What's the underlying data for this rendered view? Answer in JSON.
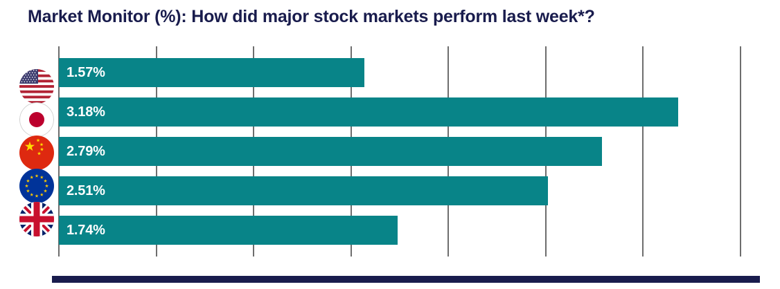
{
  "title": "Market Monitor (%): How did major stock markets perform last week*?",
  "colors": {
    "title_navy": "#191c4d",
    "bar_teal": "#088488",
    "gridline_gray": "#6d6d6d",
    "value_label_white": "#ffffff",
    "footer_navy": "#191c4d"
  },
  "chart_data": {
    "type": "bar",
    "orientation": "horizontal",
    "title": "Market Monitor (%): How did major stock markets perform last week*?",
    "categories": [
      "United States",
      "Japan",
      "China",
      "European Union",
      "United Kingdom"
    ],
    "icons": [
      "us-flag-icon",
      "japan-flag-icon",
      "china-flag-icon",
      "eu-flag-icon",
      "uk-flag-icon"
    ],
    "values": [
      1.57,
      3.18,
      2.79,
      2.51,
      1.74
    ],
    "value_labels": [
      "1.57%",
      "3.18%",
      "2.79%",
      "2.51%",
      "1.74%"
    ],
    "xlim": [
      0,
      3.5
    ],
    "grid_interval": 0.5,
    "grid": true,
    "x_tick_labels_visible": false,
    "legend": "none"
  }
}
